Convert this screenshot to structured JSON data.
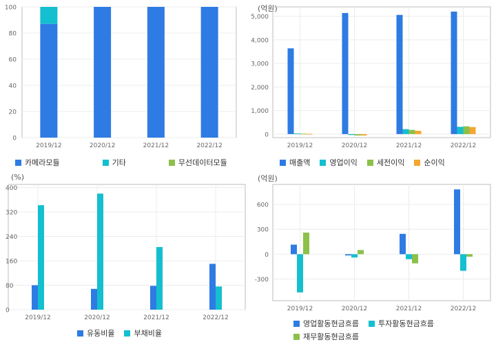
{
  "colors": {
    "blue": "#2e7be3",
    "cyan": "#14bfcf",
    "green": "#8cc04b",
    "orange": "#f3a72f",
    "grid": "#ececec",
    "axis": "#bdbdbd"
  },
  "chart_data": [
    {
      "id": "chart1",
      "type": "bar",
      "stacked": true,
      "unit_label": "",
      "categories": [
        "2019/12",
        "2020/12",
        "2021/12",
        "2022/12"
      ],
      "ylim": [
        0,
        100
      ],
      "yticks": [
        0,
        20,
        40,
        60,
        80,
        100
      ],
      "ytick_labels": [
        "0",
        "20",
        "40",
        "60",
        "80",
        "100"
      ],
      "grid": true,
      "legend_position": "bottom",
      "series": [
        {
          "name": "카메라모듈",
          "color": "#2e7be3",
          "values": [
            87,
            100,
            100,
            100
          ]
        },
        {
          "name": "기타",
          "color": "#14bfcf",
          "values": [
            13,
            0,
            0,
            0
          ]
        },
        {
          "name": "무선데이터모듈",
          "color": "#8cc04b",
          "values": [
            0,
            0,
            0,
            0
          ]
        }
      ]
    },
    {
      "id": "chart2",
      "type": "bar",
      "stacked": false,
      "unit_label": "(억원)",
      "categories": [
        "2019/12",
        "2020/12",
        "2021/12",
        "2022/12"
      ],
      "ylim": [
        -150,
        5400
      ],
      "yticks": [
        0,
        1000,
        2000,
        3000,
        4000,
        5000
      ],
      "ytick_labels": [
        "0",
        "1,000",
        "2,000",
        "3,000",
        "4,000",
        "5,000"
      ],
      "grid": true,
      "legend_position": "bottom",
      "series": [
        {
          "name": "매출액",
          "color": "#2e7be3",
          "values": [
            3640,
            5140,
            5060,
            5200
          ]
        },
        {
          "name": "영업이익",
          "color": "#14bfcf",
          "values": [
            30,
            -40,
            210,
            310
          ]
        },
        {
          "name": "세전이익",
          "color": "#8cc04b",
          "values": [
            20,
            -60,
            180,
            330
          ]
        },
        {
          "name": "순이익",
          "color": "#f3a72f",
          "values": [
            10,
            -60,
            140,
            300
          ]
        }
      ]
    },
    {
      "id": "chart3",
      "type": "bar",
      "stacked": false,
      "unit_label": "(%)",
      "categories": [
        "2019/12",
        "2020/12",
        "2021/12",
        "2022/12"
      ],
      "ylim": [
        0,
        410
      ],
      "yticks": [
        0,
        80,
        160,
        240,
        320,
        400
      ],
      "ytick_labels": [
        "0",
        "80",
        "160",
        "240",
        "320",
        "400"
      ],
      "grid": true,
      "legend_position": "bottom",
      "series": [
        {
          "name": "유동비율",
          "color": "#2e7be3",
          "values": [
            80,
            68,
            78,
            150
          ]
        },
        {
          "name": "부채비율",
          "color": "#14bfcf",
          "values": [
            342,
            380,
            205,
            76
          ]
        }
      ]
    },
    {
      "id": "chart4",
      "type": "bar",
      "stacked": false,
      "unit_label": "(억원)",
      "categories": [
        "2019/12",
        "2020/12",
        "2021/12",
        "2022/12"
      ],
      "ylim": [
        -560,
        840
      ],
      "yticks": [
        -300,
        0,
        300,
        600
      ],
      "ytick_labels": [
        "-300",
        "0",
        "300",
        "600"
      ],
      "grid": true,
      "legend_position": "bottom",
      "series": [
        {
          "name": "영업활동현금흐름",
          "color": "#2e7be3",
          "values": [
            115,
            -15,
            245,
            780
          ]
        },
        {
          "name": "투자활동현금흐름",
          "color": "#14bfcf",
          "values": [
            -460,
            -40,
            -60,
            -200
          ]
        },
        {
          "name": "재무활동현금흐름",
          "color": "#8cc04b",
          "values": [
            260,
            50,
            -110,
            -30
          ]
        }
      ]
    }
  ]
}
